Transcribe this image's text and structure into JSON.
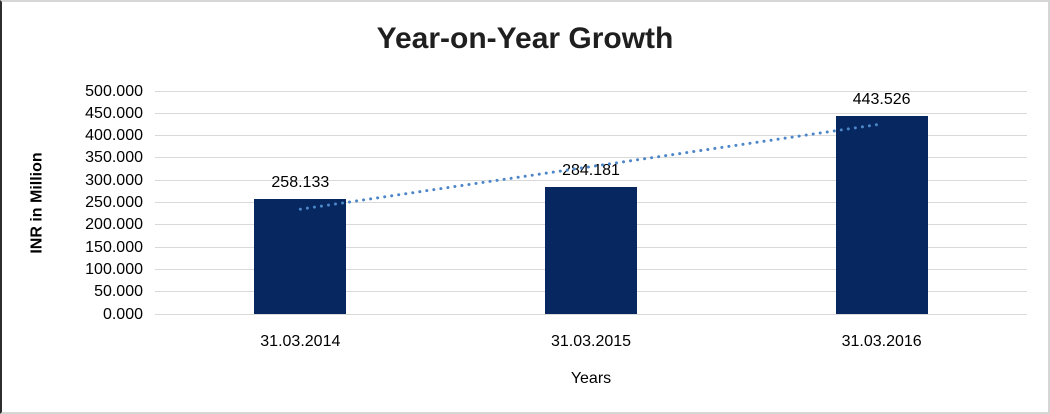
{
  "chart_data": {
    "type": "bar",
    "title": "Year-on-Year Growth",
    "categories": [
      "31.03.2014",
      "31.03.2015",
      "31.03.2016"
    ],
    "values": [
      258.133,
      284.181,
      443.526
    ],
    "data_labels": [
      "258.133",
      "284.181",
      "443.526"
    ],
    "xlabel": "Years",
    "ylabel": "INR in Million",
    "ylim": [
      0,
      500
    ],
    "ytick_step": 50,
    "ytick_labels": [
      "500.000",
      "450.000",
      "400.000",
      "350.000",
      "300.000",
      "250.000",
      "200.000",
      "150.000",
      "100.000",
      "50.000",
      "0.000"
    ],
    "grid": true,
    "legend": "none",
    "bar_color": "#06275f",
    "gridline_color": "#d9d9d9",
    "background": "#ffffff",
    "trendline": {
      "type": "linear",
      "style": "dotted",
      "color": "#4c86c8",
      "start_value": 235,
      "end_value": 426
    }
  }
}
